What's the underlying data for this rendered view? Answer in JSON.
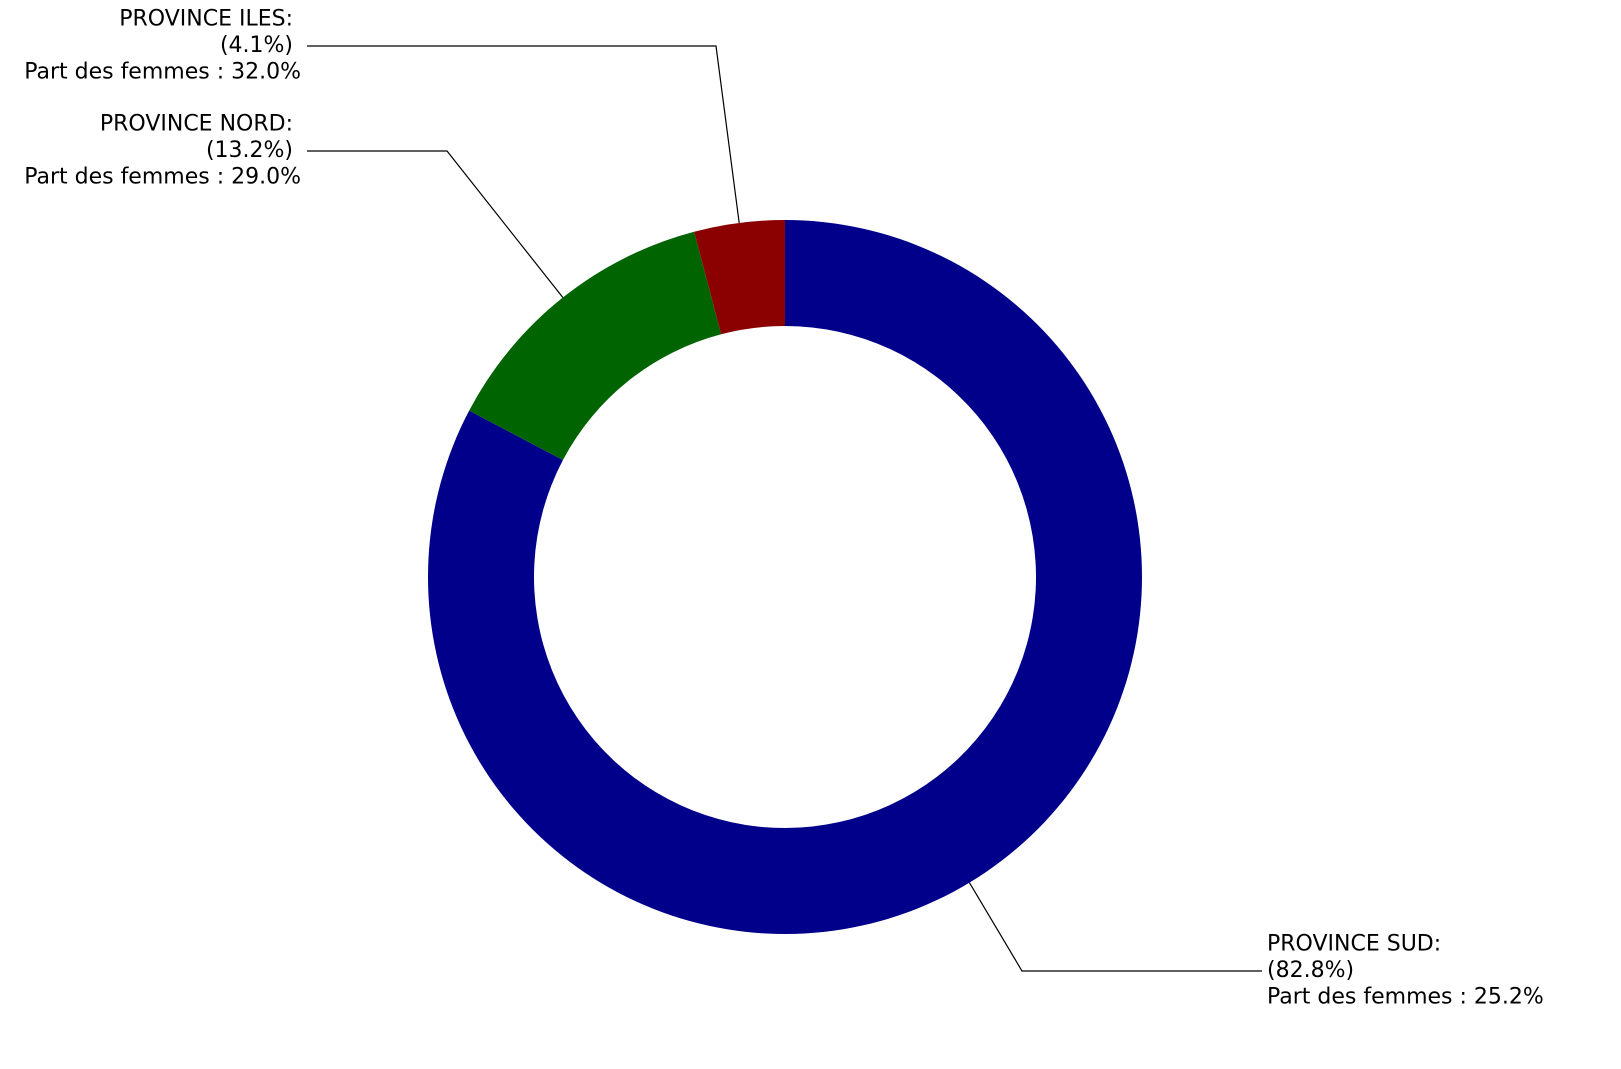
{
  "chart_data": {
    "type": "donut",
    "categories": [
      "PROVINCE SUD:",
      "PROVINCE NORD:",
      "PROVINCE ILES:"
    ],
    "values": [
      82.8,
      13.2,
      4.1
    ],
    "value_labels": [
      "(82.8%)",
      "(13.2%)",
      "(4.1%)"
    ],
    "annotations": [
      "Part des femmes : 25.2%",
      "Part des femmes : 29.0%",
      "Part des femmes : 32.0%"
    ],
    "colors": [
      "#00008b",
      "#006400",
      "#8b0000"
    ]
  }
}
